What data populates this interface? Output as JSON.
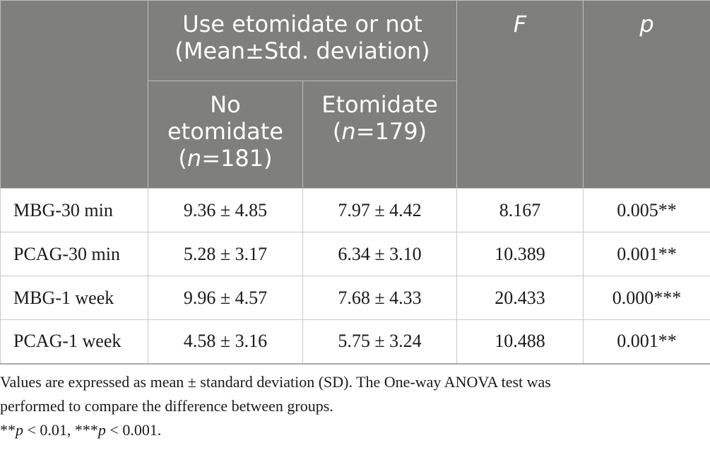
{
  "header": {
    "group_line1": "Use etomidate or not",
    "group_line2": "(Mean±Std. deviation)",
    "f_label": "F",
    "p_label": "p",
    "no_etomidate_line1": "No",
    "no_etomidate_line2": "etomidate",
    "no_etomidate_n_open": "(",
    "no_etomidate_n_var": "n",
    "no_etomidate_n_val": "=181)",
    "etomidate_line1": "Etomidate",
    "etomidate_n_open": "(",
    "etomidate_n_var": "n",
    "etomidate_n_val": "=179)"
  },
  "rows": [
    {
      "label": "MBG-30 min",
      "no_etomidate": "9.36 ± 4.85",
      "etomidate": "7.97 ± 4.42",
      "f": "8.167",
      "p": "0.005**"
    },
    {
      "label": "PCAG-30 min",
      "no_etomidate": "5.28 ± 3.17",
      "etomidate": "6.34 ± 3.10",
      "f": "10.389",
      "p": "0.001**"
    },
    {
      "label": "MBG-1 week",
      "no_etomidate": "9.96 ± 4.57",
      "etomidate": "7.68 ± 4.33",
      "f": "20.433",
      "p": "0.000***"
    },
    {
      "label": "PCAG-1 week",
      "no_etomidate": "4.58 ± 3.16",
      "etomidate": "5.75 ± 3.24",
      "f": "10.488",
      "p": "0.001**"
    }
  ],
  "footnote": {
    "line1": "Values are expressed as mean ± standard deviation (SD). The One-way ANOVA test was",
    "line2": "performed to compare the difference between groups.",
    "sig1_stars": "**",
    "sig1_var": "p",
    "sig1_rest": " < 0.01, ",
    "sig2_stars": "***",
    "sig2_var": "p",
    "sig2_rest": " < 0.001."
  }
}
